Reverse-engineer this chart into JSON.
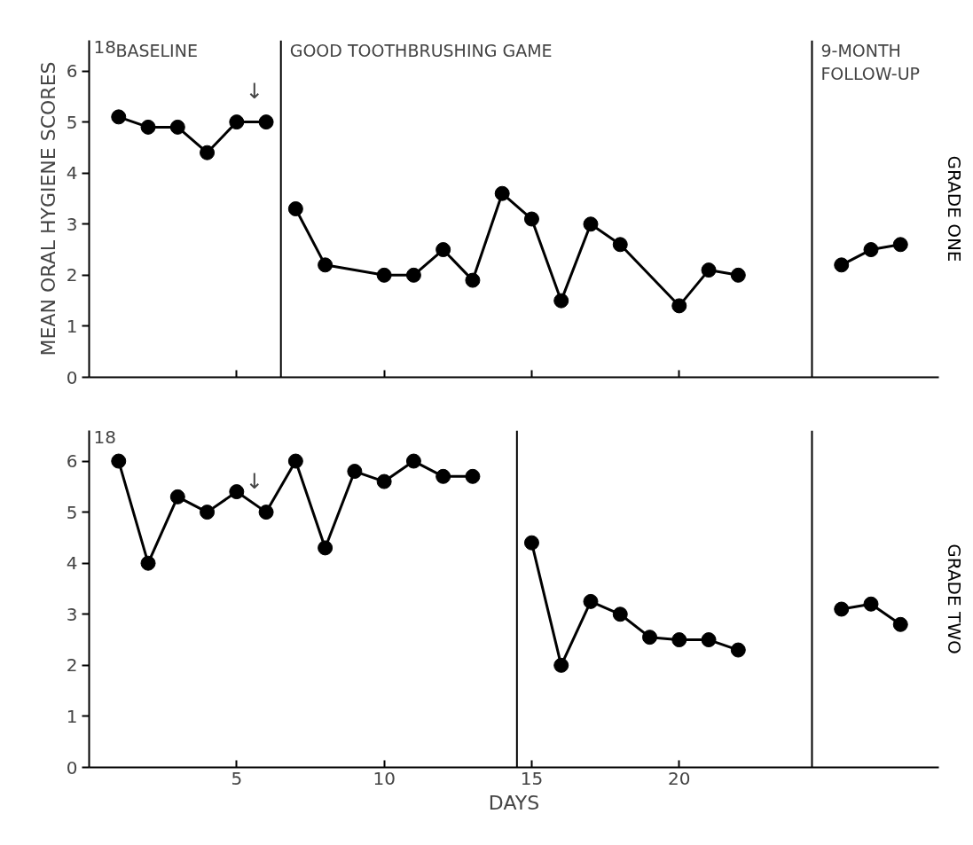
{
  "chart_data": [
    {
      "type": "line",
      "ylabel": "MEAN ORAL HYGIENE SCORES",
      "marker": "circle",
      "line_style": "solid",
      "tick_labels": "y",
      "xlim": [
        0,
        28.8
      ],
      "xticks": [
        5,
        10,
        15,
        20
      ],
      "ylim": [
        0,
        6.6
      ],
      "yticks": [
        0,
        1,
        2,
        3,
        4,
        5,
        6
      ],
      "series": [
        {
          "color": "#000000",
          "x": [
            1,
            2,
            3,
            4,
            5,
            6
          ],
          "values": [
            5.1,
            4.9,
            4.9,
            4.4,
            5.0,
            5.0
          ]
        },
        {
          "color": "#000000",
          "x": [
            7,
            8,
            10,
            11,
            12,
            13,
            14,
            15,
            16,
            17,
            18,
            20,
            21,
            22
          ],
          "values": [
            3.3,
            2.2,
            2.0,
            2.0,
            2.5,
            1.9,
            3.6,
            3.1,
            1.5,
            3.0,
            2.6,
            1.4,
            2.1,
            2.0
          ]
        },
        {
          "color": "#000000",
          "x": [
            25.5,
            26.5,
            27.5
          ],
          "values": [
            2.2,
            2.5,
            2.6
          ]
        }
      ],
      "ref_lines": [
        {
          "axis": "x",
          "value": 6.5,
          "label": "GOOD TOOTHBRUSHING GAME",
          "color": "#000000"
        },
        {
          "axis": "x",
          "value": 24.5,
          "label": "9-MONTH FOLLOW-UP",
          "color": "#000000"
        }
      ],
      "annotations": [
        "BASELINE",
        "↓",
        "GRADE ONE",
        "18"
      ]
    },
    {
      "type": "line",
      "xlabel": "DAYS",
      "marker": "circle",
      "line_style": "solid",
      "xlim": [
        0,
        28.8
      ],
      "xticks": [
        5,
        10,
        15,
        20
      ],
      "ylim": [
        0,
        6.6
      ],
      "yticks": [
        0,
        1,
        2,
        3,
        4,
        5,
        6
      ],
      "series": [
        {
          "color": "#000000",
          "x": [
            1,
            2,
            3,
            4,
            5,
            6,
            7,
            8,
            9,
            10,
            11,
            12,
            13
          ],
          "values": [
            6.0,
            4.0,
            5.3,
            5.0,
            5.4,
            5.0,
            6.0,
            4.3,
            5.8,
            5.6,
            6.0,
            5.7,
            5.7
          ]
        },
        {
          "color": "#000000",
          "x": [
            15,
            16,
            17,
            18,
            19,
            20,
            21,
            22
          ],
          "values": [
            4.4,
            2.0,
            3.25,
            3.0,
            2.55,
            2.5,
            2.5,
            2.3
          ]
        },
        {
          "color": "#000000",
          "x": [
            25.5,
            26.5,
            27.5
          ],
          "values": [
            3.1,
            3.2,
            2.8
          ]
        }
      ],
      "ref_lines": [
        {
          "axis": "x",
          "value": 14.5,
          "color": "#000000"
        },
        {
          "axis": "x",
          "value": 24.5,
          "color": "#000000"
        }
      ],
      "annotations": [
        "↓",
        "GRADE TWO",
        "18"
      ]
    }
  ]
}
